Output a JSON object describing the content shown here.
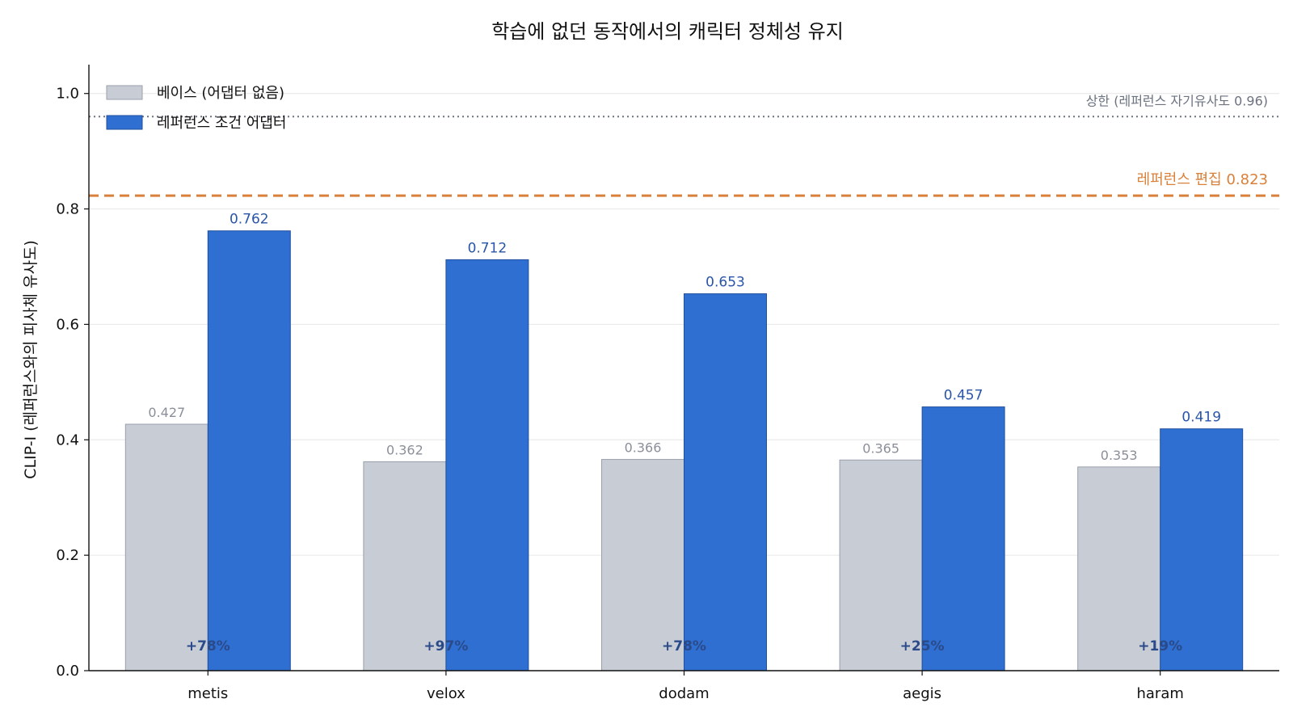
{
  "chart_data": {
    "type": "bar",
    "title": "학습에 없던 동작에서의 캐릭터 정체성 유지",
    "xlabel": "",
    "ylabel": "CLIP-I (레퍼런스와의 피사체 유사도)",
    "ylim": [
      0,
      1.05
    ],
    "yticks": [
      "0.0",
      "0.2",
      "0.4",
      "0.6",
      "0.8",
      "1.0"
    ],
    "categories": [
      "metis",
      "velox",
      "dodam",
      "aegis",
      "haram"
    ],
    "series": [
      {
        "name": "베이스 (어댑터 없음)",
        "values": [
          0.427,
          0.362,
          0.366,
          0.365,
          0.353
        ],
        "labels": [
          "0.427",
          "0.362",
          "0.366",
          "0.365",
          "0.353"
        ],
        "color": "#c8ccd5"
      },
      {
        "name": "레퍼런스 조건 어댑터",
        "values": [
          0.762,
          0.712,
          0.653,
          0.457,
          0.419
        ],
        "labels": [
          "0.762",
          "0.712",
          "0.653",
          "0.457",
          "0.419"
        ],
        "color": "#2f6fd1"
      }
    ],
    "gains": [
      "+78%",
      "+97%",
      "+78%",
      "+25%",
      "+19%"
    ],
    "reference_lines": [
      {
        "value": 0.96,
        "label": "상한 (레퍼런스 자기유사도 0.96)",
        "color": "#6b7280",
        "style": "dotted"
      },
      {
        "value": 0.823,
        "label": "레퍼런스 편집 0.823",
        "color": "#d9803a",
        "style": "dashed"
      }
    ],
    "legend_position": "top-left",
    "grid": "horizontal"
  }
}
